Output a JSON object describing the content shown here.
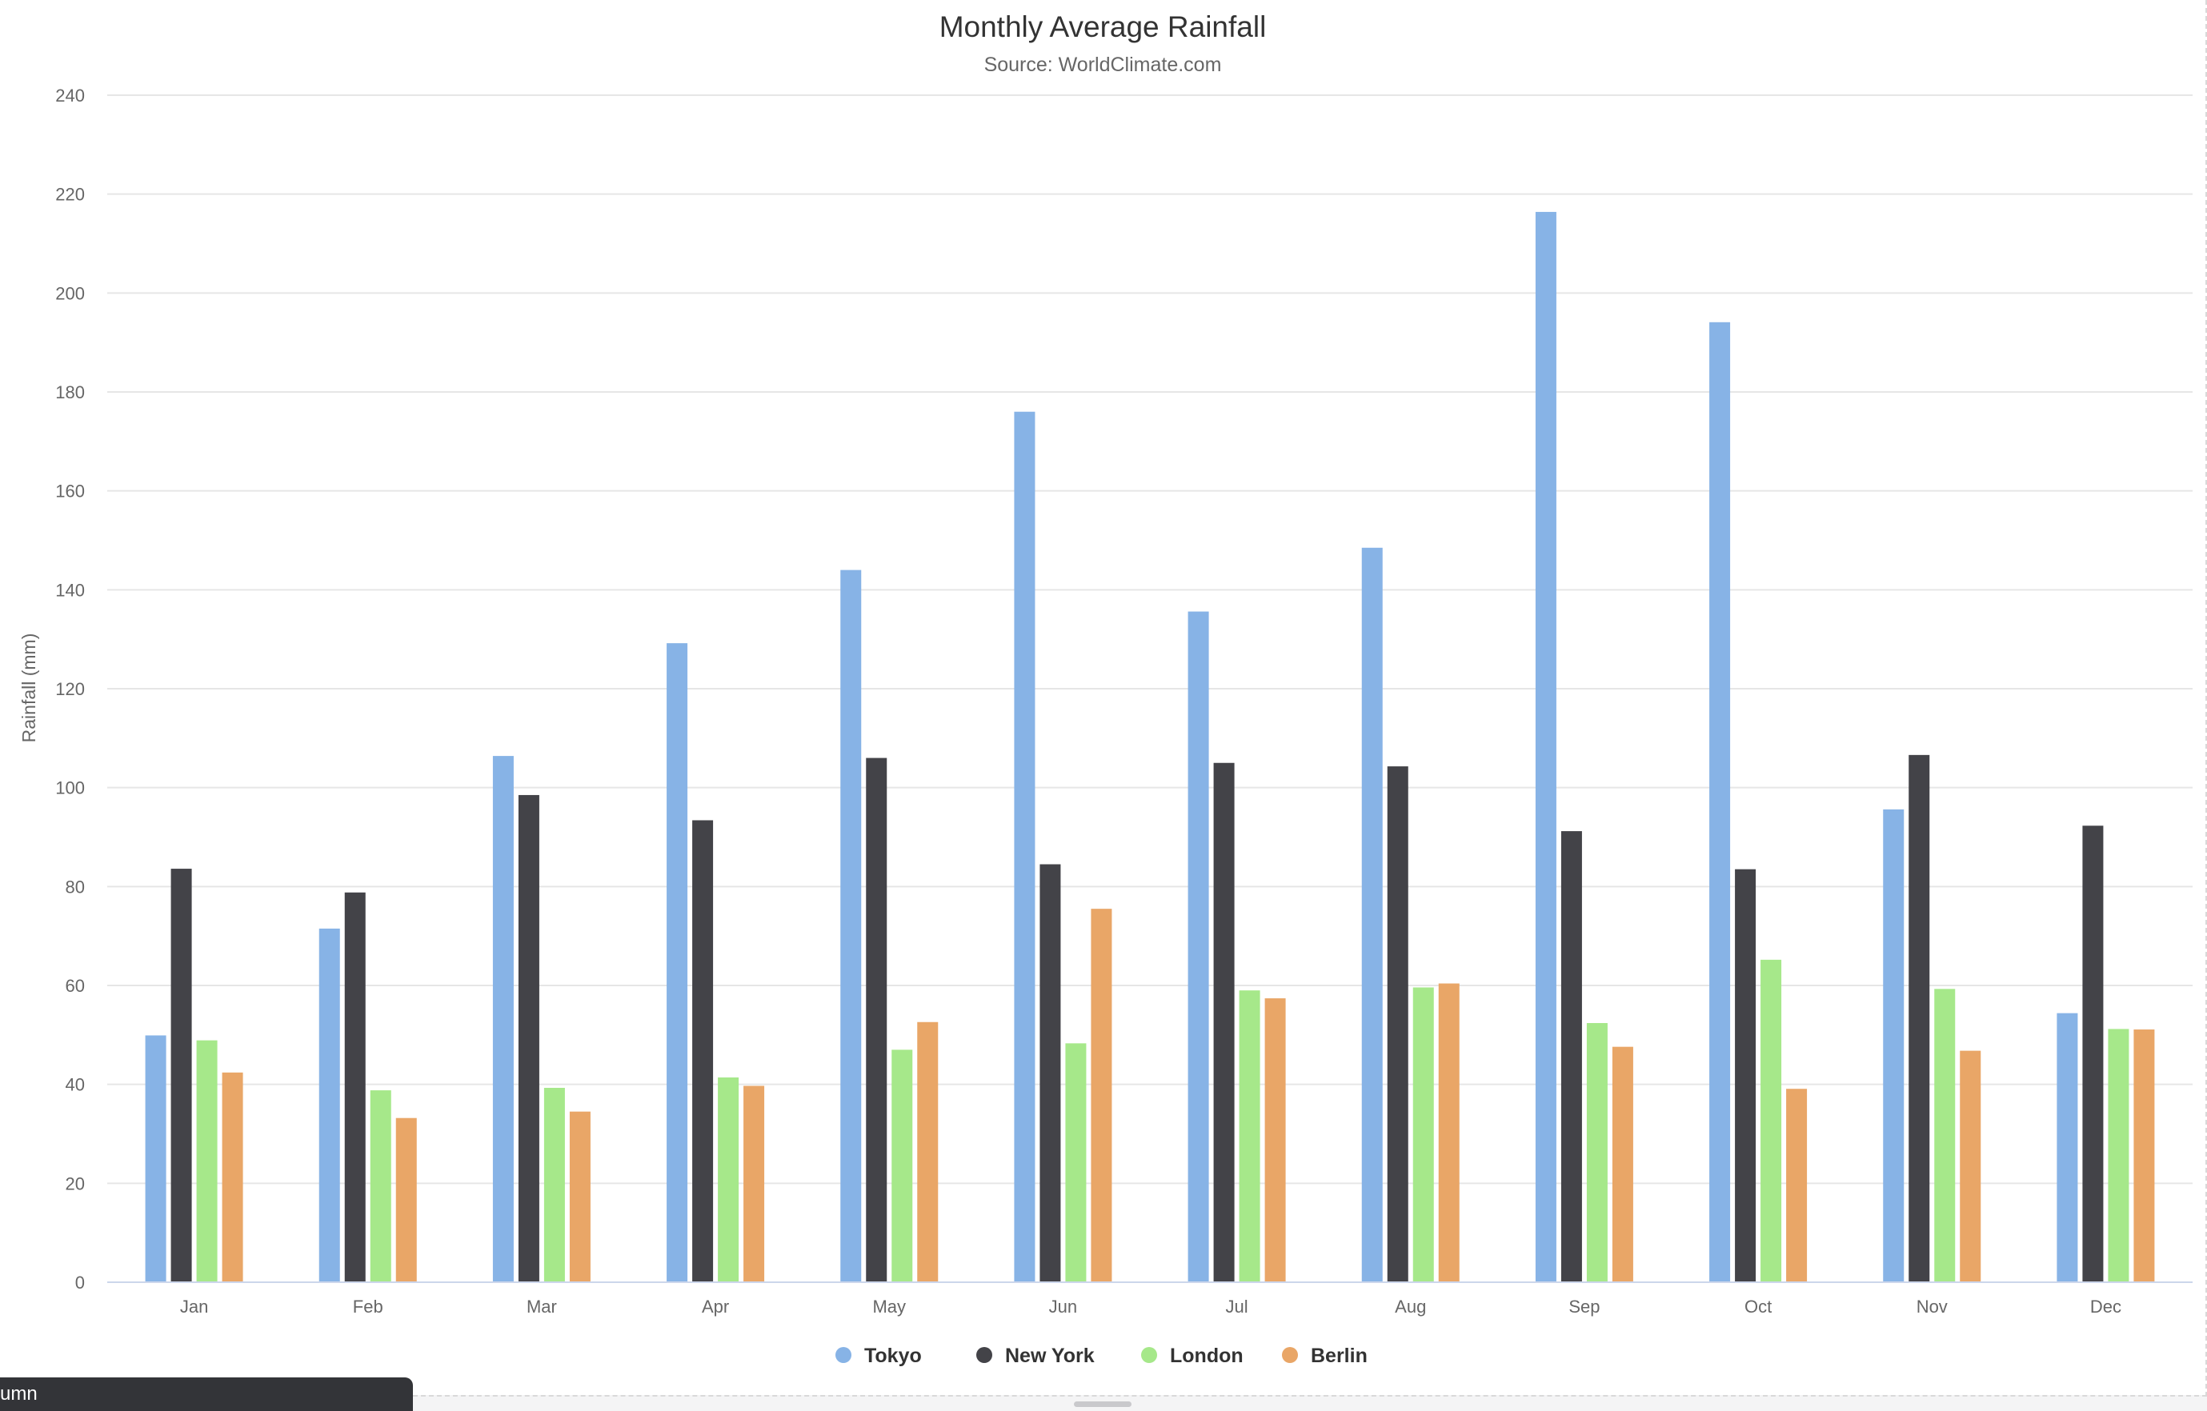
{
  "bottom_tab": {
    "label": "umn"
  },
  "chart_data": {
    "type": "bar",
    "title": "Monthly Average Rainfall",
    "subtitle": "Source: WorldClimate.com",
    "ylabel": "Rainfall (mm)",
    "xlabel": "",
    "ylim": [
      0,
      240
    ],
    "yticks": [
      0,
      20,
      40,
      60,
      80,
      100,
      120,
      140,
      160,
      180,
      200,
      220,
      240
    ],
    "grid": true,
    "legend_position": "bottom-center",
    "categories": [
      "Jan",
      "Feb",
      "Mar",
      "Apr",
      "May",
      "Jun",
      "Jul",
      "Aug",
      "Sep",
      "Oct",
      "Nov",
      "Dec"
    ],
    "series": [
      {
        "name": "Tokyo",
        "color": "#87b3e6",
        "values": [
          49.9,
          71.5,
          106.4,
          129.2,
          144.0,
          176.0,
          135.6,
          148.5,
          216.4,
          194.1,
          95.6,
          54.4
        ]
      },
      {
        "name": "New York",
        "color": "#434348",
        "values": [
          83.6,
          78.8,
          98.5,
          93.4,
          106.0,
          84.5,
          105.0,
          104.3,
          91.2,
          83.5,
          106.6,
          92.3
        ]
      },
      {
        "name": "London",
        "color": "#a6e88a",
        "values": [
          48.9,
          38.8,
          39.3,
          41.4,
          47.0,
          48.3,
          59.0,
          59.6,
          52.4,
          65.2,
          59.3,
          51.2
        ]
      },
      {
        "name": "Berlin",
        "color": "#e9a667",
        "values": [
          42.4,
          33.2,
          34.5,
          39.7,
          52.6,
          75.5,
          57.4,
          60.4,
          47.6,
          39.1,
          46.8,
          51.1
        ]
      }
    ]
  }
}
